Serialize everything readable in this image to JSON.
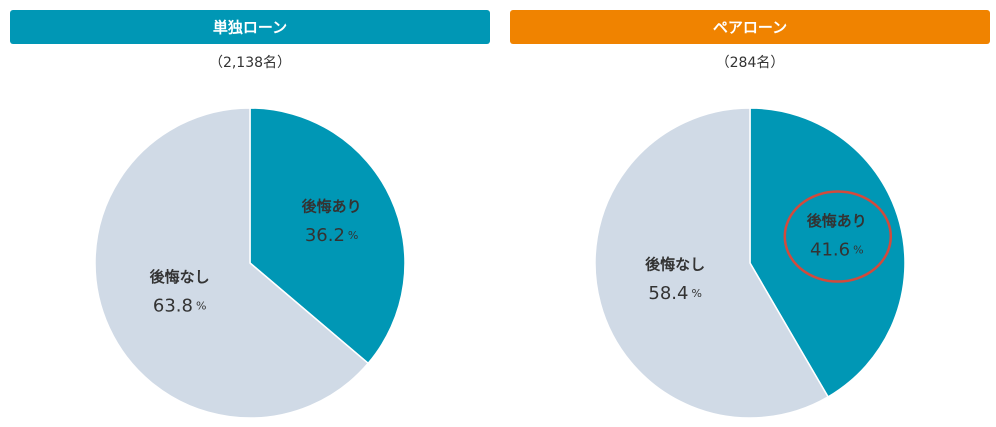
{
  "chart_data": [
    {
      "type": "pie",
      "title": "単独ローン",
      "subtitle": "（2,138名）",
      "header_color": "#0097b5",
      "categories": [
        "後悔あり",
        "後悔なし"
      ],
      "values": [
        36.2,
        63.8
      ],
      "unit": "%",
      "colors": [
        "#0097b5",
        "#d0dae6"
      ]
    },
    {
      "type": "pie",
      "title": "ペアローン",
      "subtitle": "（284名）",
      "header_color": "#f08300",
      "categories": [
        "後悔あり",
        "後悔なし"
      ],
      "values": [
        41.6,
        58.4
      ],
      "unit": "%",
      "colors": [
        "#0097b5",
        "#d0dae6"
      ]
    }
  ]
}
